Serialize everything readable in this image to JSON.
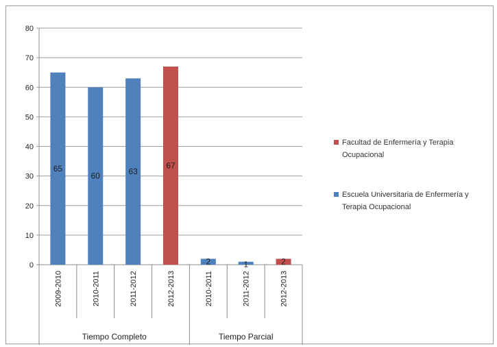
{
  "chart_data": {
    "type": "bar",
    "ylim": [
      0,
      80
    ],
    "yticks": [
      0,
      10,
      20,
      30,
      40,
      50,
      60,
      70,
      80
    ],
    "grid": true,
    "legend_position": "right",
    "groups": [
      {
        "label": "Tiempo Completo",
        "categories": [
          "2009-2010",
          "2010-2011",
          "2011-2012",
          "2012-2013"
        ]
      },
      {
        "label": "Tiempo Parcial",
        "categories": [
          "2010-2011",
          "2011-2012",
          "2012-2013"
        ]
      }
    ],
    "series": [
      {
        "name": "Facultad de Enfermería y Terapia Ocupacional",
        "color": "#c0504d",
        "points": [
          {
            "group": "Tiempo Completo",
            "category": "2012-2013",
            "value": 67
          },
          {
            "group": "Tiempo Parcial",
            "category": "2012-2013",
            "value": 2
          }
        ]
      },
      {
        "name": "Escuela Universitaria de Enfermería y Terapia Ocupacional",
        "color": "#4f81bd",
        "points": [
          {
            "group": "Tiempo Completo",
            "category": "2009-2010",
            "value": 65
          },
          {
            "group": "Tiempo Completo",
            "category": "2010-2011",
            "value": 60
          },
          {
            "group": "Tiempo Completo",
            "category": "2011-2012",
            "value": 63
          },
          {
            "group": "Tiempo Parcial",
            "category": "2010-2011",
            "value": 2
          },
          {
            "group": "Tiempo Parcial",
            "category": "2011-2012",
            "value": 1
          }
        ]
      }
    ]
  }
}
